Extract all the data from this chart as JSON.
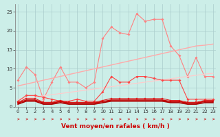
{
  "x": [
    0,
    1,
    2,
    3,
    4,
    5,
    6,
    7,
    8,
    9,
    10,
    11,
    12,
    13,
    14,
    15,
    16,
    17,
    18,
    19,
    20,
    21,
    22,
    23
  ],
  "series": [
    {
      "name": "rafales_max",
      "color": "#ff8080",
      "linewidth": 0.8,
      "marker": "D",
      "markersize": 1.8,
      "values": [
        7,
        10.5,
        8.5,
        2,
        6.5,
        10.5,
        6.5,
        6.5,
        5,
        6.5,
        18,
        21,
        19.5,
        19,
        24.5,
        22.5,
        23,
        23,
        16,
        13.5,
        8,
        13,
        8,
        8
      ]
    },
    {
      "name": "trend_rafales",
      "color": "#ffaaaa",
      "linewidth": 1.0,
      "marker": null,
      "markersize": 0,
      "values": [
        5.5,
        6.0,
        6.5,
        7.0,
        7.5,
        8.0,
        8.5,
        9.0,
        9.5,
        10.0,
        10.5,
        11.0,
        11.5,
        12.0,
        12.5,
        13.0,
        13.5,
        14.0,
        14.5,
        15.0,
        15.5,
        16.0,
        16.2,
        16.5
      ]
    },
    {
      "name": "trend_moyen",
      "color": "#ffcccc",
      "linewidth": 0.9,
      "marker": null,
      "markersize": 0,
      "values": [
        2.0,
        2.3,
        2.6,
        2.9,
        3.2,
        3.5,
        3.8,
        4.1,
        4.4,
        4.7,
        5.0,
        5.3,
        5.6,
        5.9,
        6.2,
        6.5,
        6.8,
        7.1,
        7.4,
        7.7,
        8.0,
        8.3,
        8.6,
        8.8
      ]
    },
    {
      "name": "vent_moyen",
      "color": "#ff4444",
      "linewidth": 0.8,
      "marker": "D",
      "markersize": 1.8,
      "values": [
        1.5,
        3,
        3,
        2.5,
        2,
        1.5,
        1.5,
        2,
        1.5,
        1.5,
        4,
        8,
        6.5,
        6.5,
        8,
        8,
        7.5,
        7,
        7,
        7,
        2,
        2,
        2,
        2
      ]
    },
    {
      "name": "flat_line1",
      "color": "#dd2222",
      "linewidth": 0.8,
      "marker": "s",
      "markersize": 1.5,
      "values": [
        1.2,
        2.2,
        2.2,
        1.2,
        1.2,
        1.7,
        1.2,
        1.2,
        1.2,
        1.2,
        1.7,
        2.2,
        2.2,
        2.2,
        2.2,
        2.2,
        2.2,
        2.2,
        1.7,
        1.7,
        1.2,
        1.2,
        1.7,
        1.7
      ]
    },
    {
      "name": "flat_line2",
      "color": "#cc0000",
      "linewidth": 1.2,
      "marker": null,
      "markersize": 0,
      "values": [
        1.0,
        1.8,
        1.8,
        1.0,
        1.0,
        1.4,
        1.0,
        1.0,
        1.0,
        1.0,
        1.4,
        1.8,
        1.8,
        1.8,
        1.8,
        1.8,
        1.8,
        1.8,
        1.4,
        1.4,
        1.0,
        1.0,
        1.4,
        1.4
      ]
    },
    {
      "name": "flat_line3",
      "color": "#aa0000",
      "linewidth": 1.2,
      "marker": null,
      "markersize": 0,
      "values": [
        0.7,
        1.5,
        1.5,
        0.7,
        0.7,
        1.1,
        0.7,
        0.7,
        0.7,
        0.7,
        1.1,
        1.5,
        1.5,
        1.5,
        1.5,
        1.5,
        1.5,
        1.5,
        1.1,
        1.1,
        0.7,
        0.7,
        1.1,
        1.1
      ]
    }
  ],
  "xlabel": "Vent moyen/en rafales ( km/h )",
  "xlim": [
    -0.3,
    23.3
  ],
  "ylim": [
    0,
    27
  ],
  "yticks": [
    0,
    5,
    10,
    15,
    20,
    25
  ],
  "xticks": [
    0,
    1,
    2,
    3,
    4,
    5,
    6,
    7,
    8,
    9,
    10,
    11,
    12,
    13,
    14,
    15,
    16,
    17,
    18,
    19,
    20,
    21,
    22,
    23
  ],
  "bg_color": "#cceee8",
  "grid_color": "#aacccc",
  "xlabel_color": "#cc0000",
  "xlabel_fontsize": 6.5,
  "tick_fontsize": 5,
  "arrow_color": "#cc2222"
}
